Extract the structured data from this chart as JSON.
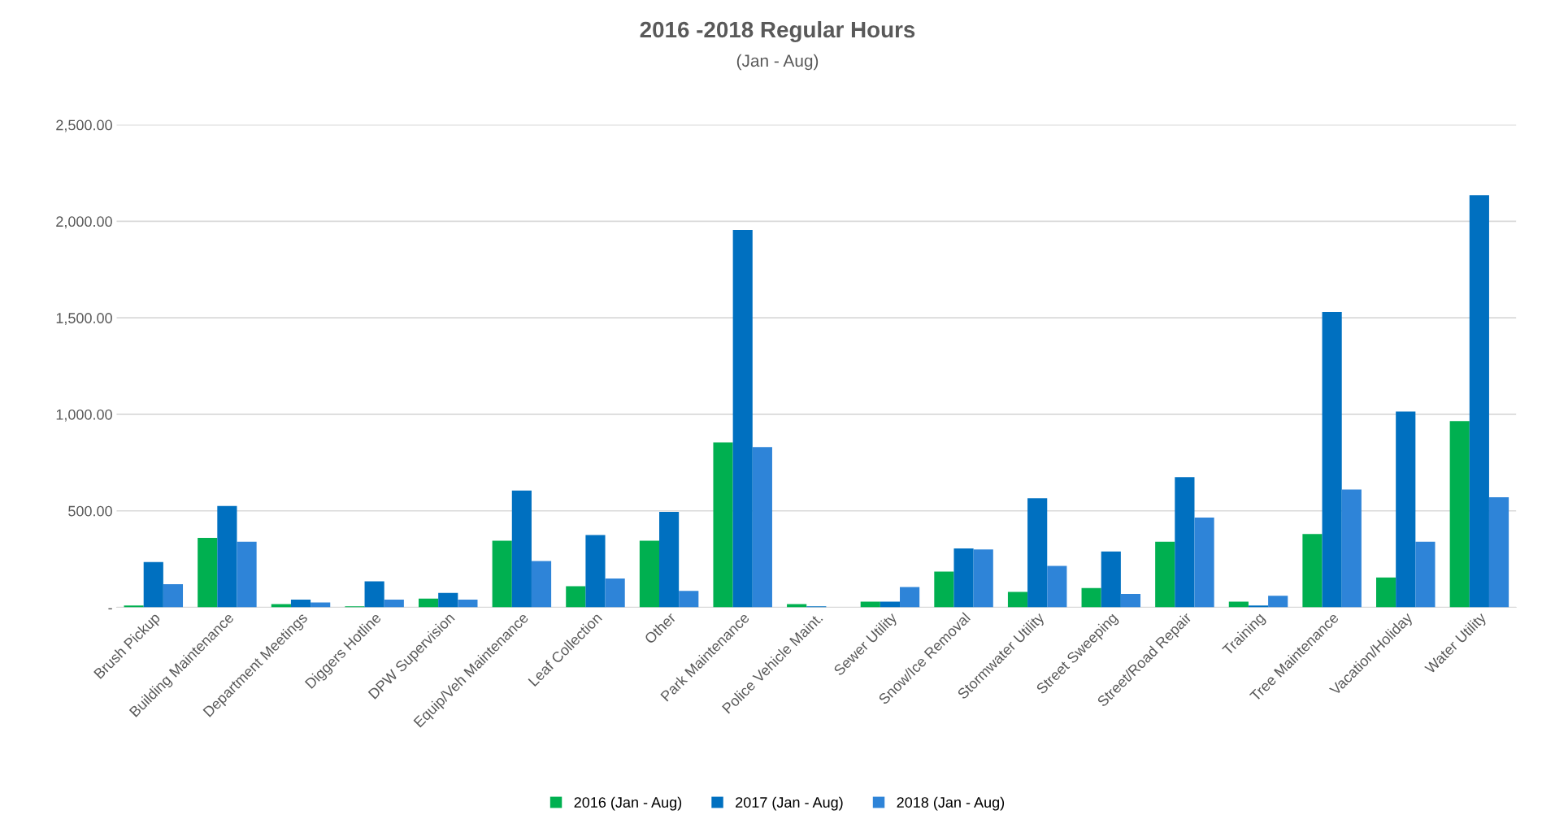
{
  "chart_data": {
    "type": "bar",
    "title": "2016 -2018 Regular Hours",
    "subtitle": "(Jan - Aug)",
    "categories": [
      "Brush Pickup",
      "Building Maintenance",
      "Department Meetings",
      "Diggers Hotline",
      "DPW Supervision",
      "Equip/Veh Maintenance",
      "Leaf Collection",
      "Other",
      "Park Maintenance",
      "Police Vehicle Maint.",
      "Sewer Utility",
      "Snow/Ice Removal",
      "Stormwater Utility",
      "Street Sweeping",
      "Street/Road Repair",
      "Training",
      "Tree Maintenance",
      "Vacation/Holiday",
      "Water Utility"
    ],
    "series": [
      {
        "name": "2016 (Jan - Aug)",
        "color": "#00b050",
        "values": [
          10,
          360,
          17,
          5,
          45,
          345,
          110,
          345,
          855,
          17,
          30,
          185,
          80,
          100,
          340,
          30,
          380,
          155,
          965
        ]
      },
      {
        "name": "2017 (Jan - Aug)",
        "color": "#0070c0",
        "values": [
          235,
          525,
          40,
          135,
          75,
          605,
          375,
          495,
          1955,
          5,
          30,
          305,
          565,
          290,
          675,
          10,
          1530,
          1015,
          2135
        ]
      },
      {
        "name": "2018 (Jan - Aug)",
        "color": "#2e84d8",
        "values": [
          120,
          340,
          25,
          40,
          40,
          240,
          150,
          85,
          830,
          null,
          105,
          300,
          215,
          70,
          465,
          60,
          610,
          340,
          570
        ]
      }
    ],
    "ylim": [
      0,
      2500
    ],
    "yticks": [
      {
        "value": 0,
        "label": "-"
      },
      {
        "value": 500,
        "label": "500.00"
      },
      {
        "value": 1000,
        "label": "1,000.00"
      },
      {
        "value": 1500,
        "label": "1,500.00"
      },
      {
        "value": 2000,
        "label": "2,000.00"
      },
      {
        "value": 2500,
        "label": "2,500.00"
      }
    ],
    "grid": "y",
    "legend": "bottom"
  }
}
